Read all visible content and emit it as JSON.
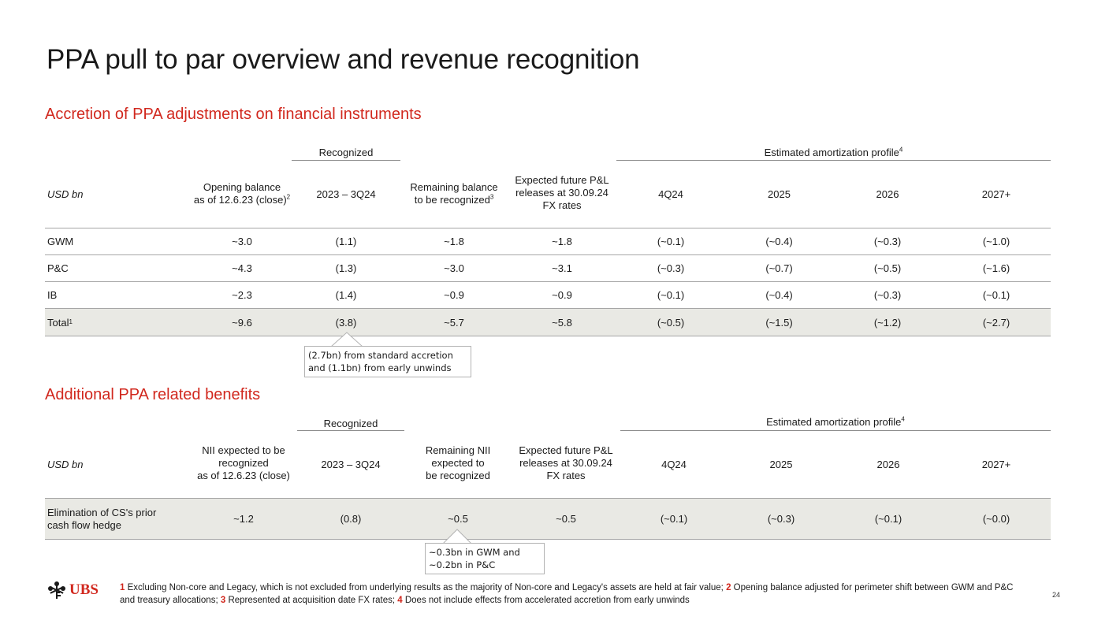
{
  "title": "PPA pull to par overview and revenue recognition",
  "section1": {
    "title": "Accretion of PPA adjustments on financial instruments",
    "group_recognized": "Recognized",
    "group_estimated": "Estimated amortization profile",
    "group_estimated_sup": "4",
    "headers": {
      "c0": "USD bn",
      "c1_l1": "Opening balance",
      "c1_l2": "as of 12.6.23 (close)",
      "c1_sup": "2",
      "c2": "2023 – 3Q24",
      "c3_l1": "Remaining balance",
      "c3_l2": "to be recognized",
      "c3_sup": "3",
      "c4_l1": "Expected future P&L",
      "c4_l2": "releases at 30.09.24",
      "c4_l3": "FX rates",
      "c5": "4Q24",
      "c6": "2025",
      "c7": "2026",
      "c8": "2027+"
    },
    "rows": [
      {
        "label": "GWM",
        "sup": "",
        "v": [
          "~3.0",
          "(1.1)",
          "~1.8",
          "~1.8",
          "(~0.1)",
          "(~0.4)",
          "(~0.3)",
          "(~1.0)"
        ]
      },
      {
        "label": "P&C",
        "sup": "",
        "v": [
          "~4.3",
          "(1.3)",
          "~3.0",
          "~3.1",
          "(~0.3)",
          "(~0.7)",
          "(~0.5)",
          "(~1.6)"
        ]
      },
      {
        "label": "IB",
        "sup": "",
        "v": [
          "~2.3",
          "(1.4)",
          "~0.9",
          "~0.9",
          "(~0.1)",
          "(~0.4)",
          "(~0.3)",
          "(~0.1)"
        ]
      },
      {
        "label": "Total",
        "sup": "1",
        "v": [
          "~9.6",
          "(3.8)",
          "~5.7",
          "~5.8",
          "(~0.5)",
          "(~1.5)",
          "(~1.2)",
          "(~2.7)"
        ]
      }
    ],
    "callout_l1": "(2.7bn) from standard accretion",
    "callout_l2": "and (1.1bn) from early unwinds"
  },
  "section2": {
    "title": "Additional PPA related benefits",
    "group_recognized": "Recognized",
    "group_estimated": "Estimated amortization profile",
    "group_estimated_sup": "4",
    "headers": {
      "c0": "USD bn",
      "c1_l1": "NII expected to be",
      "c1_l2": "recognized",
      "c1_l3": "as of 12.6.23 (close)",
      "c2": "2023 – 3Q24",
      "c3_l1": "Remaining NII",
      "c3_l2": "expected to",
      "c3_l3": "be recognized",
      "c4_l1": "Expected future P&L",
      "c4_l2": "releases at 30.09.24",
      "c4_l3": "FX rates",
      "c5": "4Q24",
      "c6": "2025",
      "c7": "2026",
      "c8": "2027+"
    },
    "row": {
      "label_l1": "Elimination of CS's prior",
      "label_l2": "cash flow hedge",
      "v": [
        "~1.2",
        "(0.8)",
        "~0.5",
        "~0.5",
        "(~0.1)",
        "(~0.3)",
        "(~0.1)",
        "(~0.0)"
      ]
    },
    "callout_l1": "~0.3bn in GWM and",
    "callout_l2": "~0.2bn in P&C"
  },
  "logo": "UBS",
  "footnotes": [
    {
      "num": "1",
      "text": " Excluding Non-core and Legacy, which is not excluded from underlying results as the majority of Non-core and Legacy's assets are held at fair value; "
    },
    {
      "num": "2",
      "text": " Opening balance adjusted for perimeter shift between GWM and P&C and treasury allocations; "
    },
    {
      "num": "3",
      "text": " Represented at acquisition date FX rates; "
    },
    {
      "num": "4",
      "text": " Does not include effects from accelerated accretion from early unwinds"
    }
  ],
  "page_number": "24",
  "colors": {
    "accent": "#d1281e",
    "total_row": "#e9e9e4"
  }
}
